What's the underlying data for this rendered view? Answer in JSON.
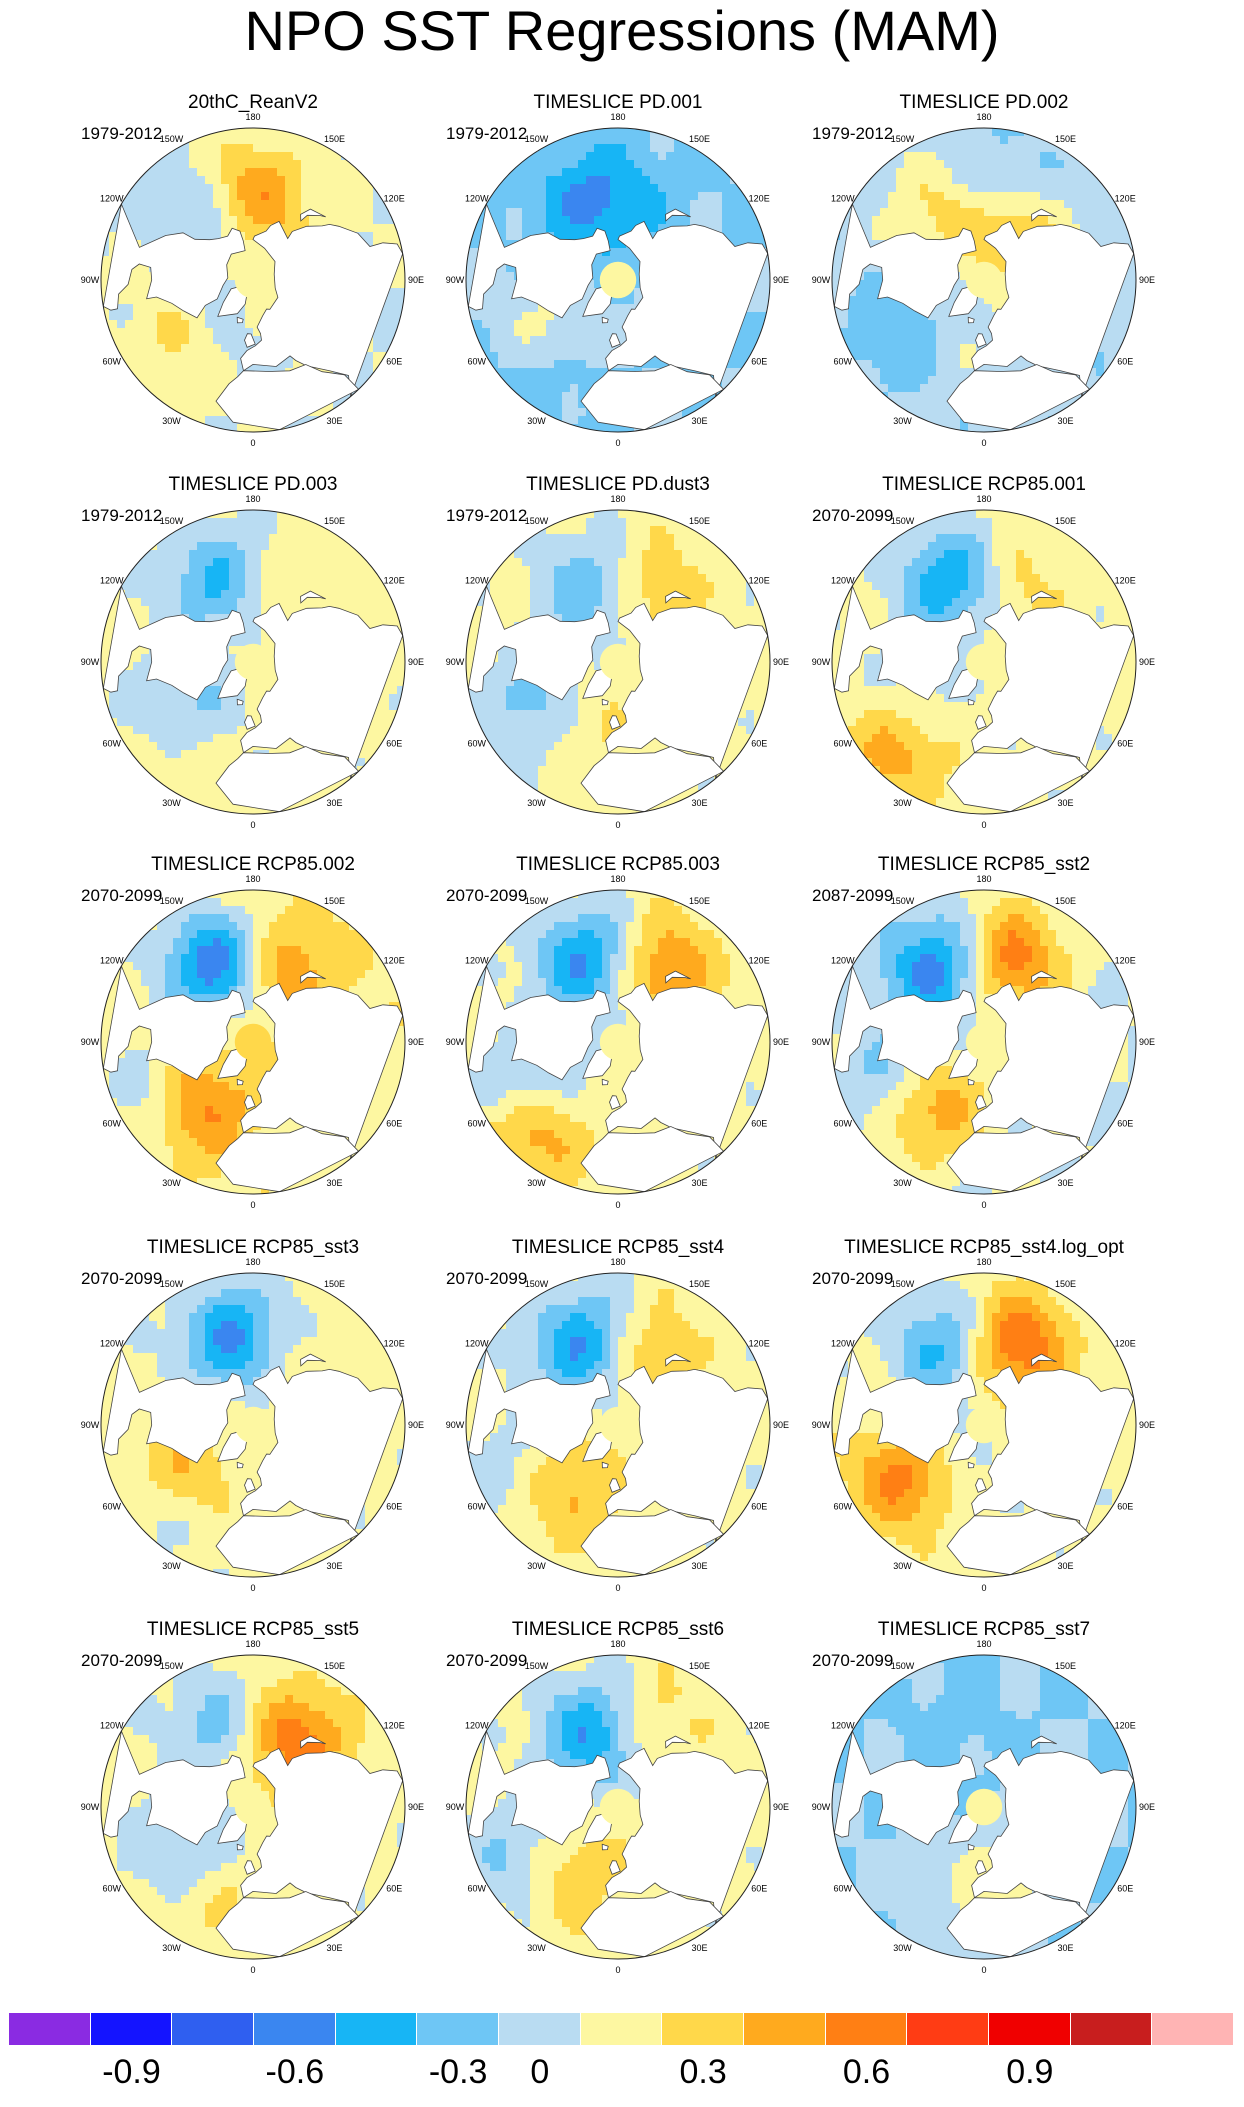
{
  "title": "NPO SST Regressions (MAM)",
  "colors": {
    "land": "#ffffff",
    "coast": "#444444",
    "outline": "#222222",
    "scale": [
      "#8a2be2",
      "#1414ff",
      "#2f5ff0",
      "#3a86f0",
      "#17b5f5",
      "#6ec6f5",
      "#b9dcf2",
      "#fdf7a1",
      "#ffd84a",
      "#ffaa1e",
      "#ff7f14",
      "#ff3c14",
      "#f00000",
      "#c81e1e",
      "#ffb4b4"
    ]
  },
  "colorbar": {
    "labels": [
      "-0.9",
      "-0.6",
      "-0.3",
      "0",
      "0.3",
      "0.6",
      "0.9"
    ]
  },
  "lon_labels": [
    "180",
    "150E",
    "120E",
    "90E",
    "60E",
    "30E",
    "0",
    "30W",
    "60W",
    "90W",
    "120W",
    "150W"
  ],
  "panels": [
    {
      "title": "20thC_ReanV2",
      "period": "1979-2012",
      "pattern": {
        "base": 0,
        "pacific": [
          {
            "lon": -150,
            "lat": 45,
            "v": -0.35
          },
          {
            "lon": -175,
            "lat": 40,
            "v": 0.45
          },
          {
            "lon": 170,
            "lat": 50,
            "v": 0.15
          }
        ],
        "atlantic": [
          {
            "lon": -50,
            "lat": 35,
            "v": 0.2
          },
          {
            "lon": -30,
            "lat": 50,
            "v": -0.1
          }
        ]
      }
    },
    {
      "title": "TIMESLICE PD.001",
      "period": "1979-2012",
      "pattern": {
        "base": -0.15,
        "pacific": [
          {
            "lon": -160,
            "lat": 40,
            "v": -0.3
          },
          {
            "lon": 170,
            "lat": 45,
            "v": -0.1
          }
        ],
        "atlantic": [
          {
            "lon": -55,
            "lat": 40,
            "v": 0.25
          },
          {
            "lon": -40,
            "lat": 25,
            "v": -0.15
          }
        ]
      }
    },
    {
      "title": "TIMESLICE PD.002",
      "period": "1979-2012",
      "pattern": {
        "base": -0.1,
        "pacific": [
          {
            "lon": -150,
            "lat": 40,
            "v": 0.3
          },
          {
            "lon": 170,
            "lat": 40,
            "v": -0.3
          },
          {
            "lon": 150,
            "lat": 55,
            "v": 0.5
          }
        ],
        "atlantic": [
          {
            "lon": -55,
            "lat": 35,
            "v": -0.25
          },
          {
            "lon": -30,
            "lat": 50,
            "v": 0.15
          }
        ]
      }
    },
    {
      "title": "TIMESLICE PD.003",
      "period": "1979-2012",
      "pattern": {
        "base": 0.05,
        "pacific": [
          {
            "lon": -160,
            "lat": 40,
            "v": -0.45
          },
          {
            "lon": 170,
            "lat": 50,
            "v": 0.2
          }
        ],
        "atlantic": [
          {
            "lon": -55,
            "lat": 40,
            "v": -0.3
          },
          {
            "lon": -40,
            "lat": 25,
            "v": 0.15
          }
        ]
      }
    },
    {
      "title": "TIMESLICE PD.dust3",
      "period": "1979-2012",
      "pattern": {
        "base": 0.05,
        "pacific": [
          {
            "lon": -165,
            "lat": 45,
            "v": -0.45
          },
          {
            "lon": 165,
            "lat": 45,
            "v": 0.35
          }
        ],
        "atlantic": [
          {
            "lon": -60,
            "lat": 35,
            "v": -0.35
          },
          {
            "lon": -35,
            "lat": 45,
            "v": 0.2
          }
        ]
      }
    },
    {
      "title": "TIMESLICE RCP85.001",
      "period": "2070-2099",
      "pattern": {
        "base": 0.05,
        "pacific": [
          {
            "lon": -160,
            "lat": 40,
            "v": -0.55
          },
          {
            "lon": 165,
            "lat": 45,
            "v": 0.25
          }
        ],
        "atlantic": [
          {
            "lon": -55,
            "lat": 40,
            "v": -0.2
          },
          {
            "lon": -45,
            "lat": 20,
            "v": 0.4
          }
        ]
      }
    },
    {
      "title": "TIMESLICE RCP85.002",
      "period": "2070-2099",
      "pattern": {
        "base": 0.1,
        "pacific": [
          {
            "lon": -155,
            "lat": 40,
            "v": -0.7
          },
          {
            "lon": 160,
            "lat": 45,
            "v": 0.4
          }
        ],
        "atlantic": [
          {
            "lon": -60,
            "lat": 30,
            "v": -0.4
          },
          {
            "lon": -45,
            "lat": 40,
            "v": 0.6
          }
        ]
      }
    },
    {
      "title": "TIMESLICE RCP85.003",
      "period": "2070-2099",
      "pattern": {
        "base": 0.05,
        "pacific": [
          {
            "lon": -160,
            "lat": 40,
            "v": -0.55
          },
          {
            "lon": 150,
            "lat": 40,
            "v": 0.45
          }
        ],
        "atlantic": [
          {
            "lon": -60,
            "lat": 30,
            "v": -0.4
          },
          {
            "lon": -45,
            "lat": 20,
            "v": 0.5
          }
        ]
      }
    },
    {
      "title": "TIMESLICE RCP85_sst2",
      "period": "2087-2099",
      "pattern": {
        "base": 0,
        "pacific": [
          {
            "lon": -150,
            "lat": 40,
            "v": -0.6
          },
          {
            "lon": 165,
            "lat": 40,
            "v": 0.6
          }
        ],
        "atlantic": [
          {
            "lon": -60,
            "lat": 35,
            "v": -0.5
          },
          {
            "lon": -45,
            "lat": 40,
            "v": 0.7
          }
        ]
      }
    },
    {
      "title": "TIMESLICE RCP85_sst3",
      "period": "2070-2099",
      "pattern": {
        "base": 0.05,
        "pacific": [
          {
            "lon": -170,
            "lat": 40,
            "v": -0.6
          },
          {
            "lon": 160,
            "lat": 50,
            "v": 0.2
          }
        ],
        "atlantic": [
          {
            "lon": -55,
            "lat": 40,
            "v": 0.3
          },
          {
            "lon": -45,
            "lat": 20,
            "v": -0.15
          }
        ]
      }
    },
    {
      "title": "TIMESLICE RCP85_sst4",
      "period": "2070-2099",
      "pattern": {
        "base": 0.05,
        "pacific": [
          {
            "lon": -160,
            "lat": 40,
            "v": -0.6
          },
          {
            "lon": 165,
            "lat": 45,
            "v": 0.35
          }
        ],
        "atlantic": [
          {
            "lon": -60,
            "lat": 30,
            "v": -0.35
          },
          {
            "lon": -45,
            "lat": 40,
            "v": 0.5
          }
        ]
      }
    },
    {
      "title": "TIMESLICE RCP85_sst4.log_opt",
      "period": "2070-2099",
      "pattern": {
        "base": 0.05,
        "pacific": [
          {
            "lon": -155,
            "lat": 40,
            "v": -0.45
          },
          {
            "lon": 160,
            "lat": 40,
            "v": 0.6
          }
        ],
        "atlantic": [
          {
            "lon": -55,
            "lat": 35,
            "v": 0.55
          },
          {
            "lon": -40,
            "lat": 55,
            "v": -0.2
          }
        ]
      }
    },
    {
      "title": "TIMESLICE RCP85_sst5",
      "period": "2070-2099",
      "pattern": {
        "base": 0.05,
        "pacific": [
          {
            "lon": -160,
            "lat": 40,
            "v": -0.3
          },
          {
            "lon": 150,
            "lat": 45,
            "v": 0.55
          }
        ],
        "atlantic": [
          {
            "lon": -55,
            "lat": 40,
            "v": -0.3
          },
          {
            "lon": -30,
            "lat": 30,
            "v": 0.2
          }
        ]
      }
    },
    {
      "title": "TIMESLICE RCP85_sst6",
      "period": "2070-2099",
      "pattern": {
        "base": 0.05,
        "pacific": [
          {
            "lon": -165,
            "lat": 45,
            "v": -0.6
          },
          {
            "lon": 165,
            "lat": 40,
            "v": 0.3
          }
        ],
        "atlantic": [
          {
            "lon": -60,
            "lat": 30,
            "v": -0.45
          },
          {
            "lon": -45,
            "lat": 40,
            "v": 0.45
          }
        ]
      }
    },
    {
      "title": "TIMESLICE RCP85_sst7",
      "period": "2070-2099",
      "pattern": {
        "base": -0.15,
        "pacific": [
          {
            "lon": -160,
            "lat": 40,
            "v": -0.05
          }
        ],
        "atlantic": [
          {
            "lon": -40,
            "lat": 35,
            "v": 0.05
          },
          {
            "lon": 10,
            "lat": 40,
            "v": 0.25
          }
        ]
      }
    }
  ]
}
